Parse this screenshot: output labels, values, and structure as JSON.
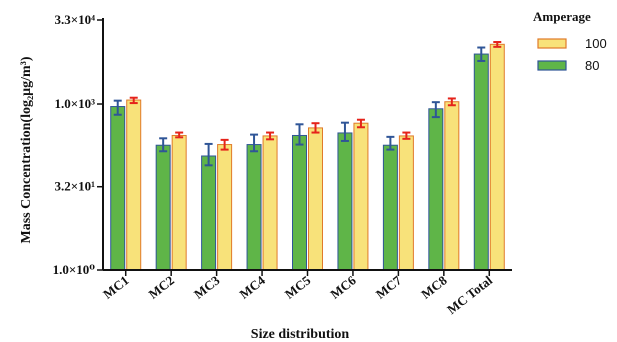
{
  "chart_data": {
    "type": "bar",
    "xlabel": "Size distribution",
    "ylabel": "Mass Concentration(log₂μg/m³)",
    "yscale": "log",
    "ylim": [
      1,
      33000
    ],
    "y_ticks": [
      {
        "value": 1,
        "label": "1.0×10⁰"
      },
      {
        "value": 32,
        "label": "3.2×10¹"
      },
      {
        "value": 1000,
        "label": "1.0×10³"
      },
      {
        "value": 33000,
        "label": "3.3×10⁴"
      }
    ],
    "categories": [
      "MC1",
      "MC2",
      "MC3",
      "MC4",
      "MC5",
      "MC6",
      "MC7",
      "MC8",
      "MC Total"
    ],
    "legend": {
      "title": "Amperage",
      "position": "top-right"
    },
    "series": [
      {
        "name": "80",
        "color": "#5fb548",
        "edge_color": "#2f5597",
        "error_color": "#2f5597",
        "values": [
          900,
          180,
          115,
          185,
          270,
          300,
          180,
          820,
          8000
        ],
        "errors_low": [
          640,
          140,
          78,
          140,
          185,
          215,
          150,
          580,
          6000
        ],
        "errors_high": [
          1150,
          240,
          190,
          280,
          430,
          460,
          255,
          1080,
          10500
        ]
      },
      {
        "name": "100",
        "color": "#f8e27a",
        "edge_color": "#e07a2a",
        "error_color": "#e5231a",
        "values": [
          1180,
          270,
          185,
          265,
          370,
          450,
          265,
          1100,
          12000
        ],
        "errors_low": [
          1040,
          250,
          150,
          230,
          305,
          380,
          235,
          950,
          10800
        ],
        "errors_high": [
          1300,
          305,
          225,
          305,
          450,
          520,
          305,
          1260,
          13200
        ]
      }
    ]
  }
}
